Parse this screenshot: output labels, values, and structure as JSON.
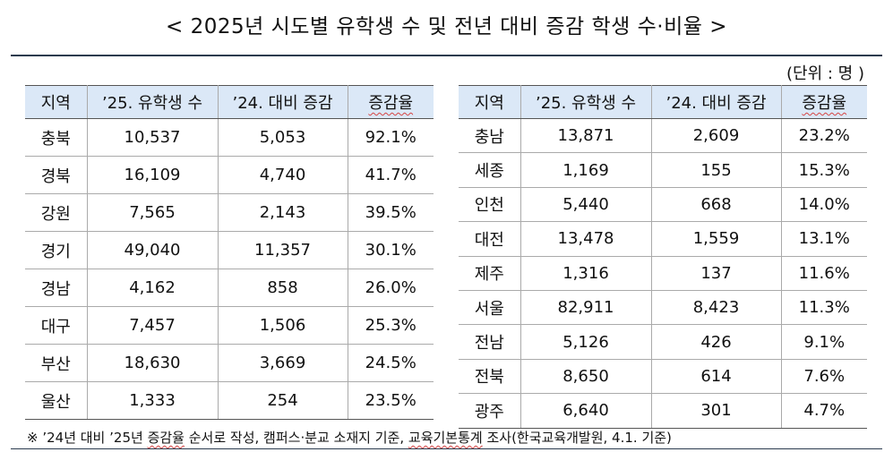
{
  "title": "< 2025년 시도별 유학생 수 및 전년 대비 증감 학생 수·비율 >",
  "unit": "(단위 : 명 )",
  "columns": [
    "지역",
    "’25. 유학생 수",
    "’24. 대비 증감",
    "증감율"
  ],
  "left_rows": [
    [
      "충북",
      "10,537",
      "5,053",
      "92.1%"
    ],
    [
      "경북",
      "16,109",
      "4,740",
      "41.7%"
    ],
    [
      "강원",
      "7,565",
      "2,143",
      "39.5%"
    ],
    [
      "경기",
      "49,040",
      "11,357",
      "30.1%"
    ],
    [
      "경남",
      "4,162",
      "858",
      "26.0%"
    ],
    [
      "대구",
      "7,457",
      "1,506",
      "25.3%"
    ],
    [
      "부산",
      "18,630",
      "3,669",
      "24.5%"
    ],
    [
      "울산",
      "1,333",
      "254",
      "23.5%"
    ]
  ],
  "right_rows": [
    [
      "충남",
      "13,871",
      "2,609",
      "23.2%"
    ],
    [
      "세종",
      "1,169",
      "155",
      "15.3%"
    ],
    [
      "인천",
      "5,440",
      "668",
      "14.0%"
    ],
    [
      "대전",
      "13,478",
      "1,559",
      "13.1%"
    ],
    [
      "제주",
      "1,316",
      "137",
      "11.6%"
    ],
    [
      "서울",
      "82,911",
      "8,423",
      "11.3%"
    ],
    [
      "전남",
      "5,126",
      "426",
      "9.1%"
    ],
    [
      "전북",
      "8,650",
      "614",
      "7.6%"
    ],
    [
      "광주",
      "6,640",
      "301",
      "4.7%"
    ]
  ],
  "note": {
    "p1": "※ ’24년 대비 ’25년 ",
    "p2": "증감율",
    "p3": " 순서로 작성, 캠퍼스·분교 소재지 기준, ",
    "p4": "교육기본통계",
    "p5": " 조사(한국교육개발원, 4.1. 기준)"
  },
  "colors": {
    "header_bg": "#dbe8f7",
    "rule": "#2a3b4e",
    "underline": "#d64545"
  }
}
